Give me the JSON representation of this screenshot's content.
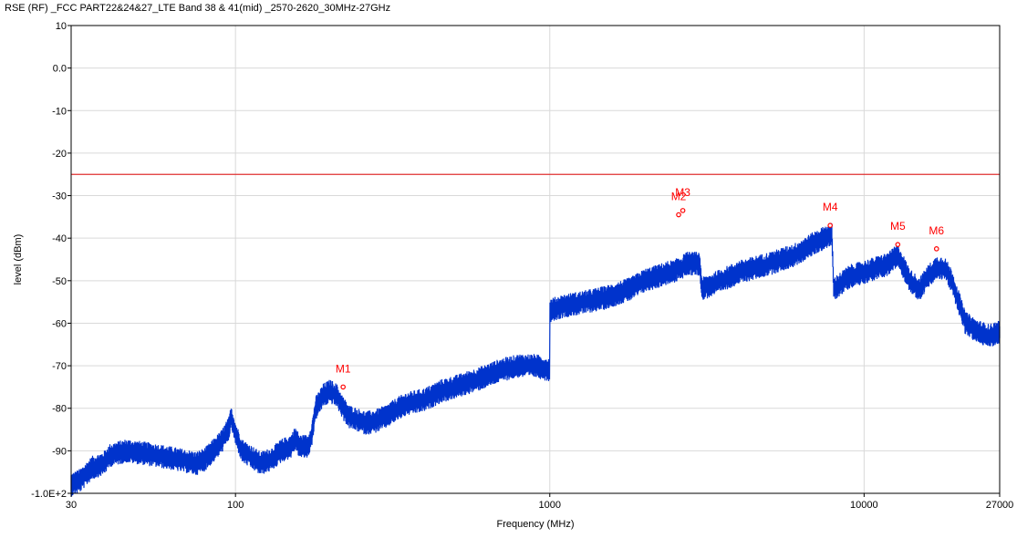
{
  "title": "RSE (RF)  _FCC PART22&24&27_LTE Band 38 & 41(mid) _2570-2620_30MHz-27GHz",
  "chart_data": {
    "type": "line",
    "title": "RSE (RF)  _FCC PART22&24&27_LTE Band 38 & 41(mid) _2570-2620_30MHz-27GHz",
    "xlabel": "Frequency (MHz)",
    "ylabel": "level (dBm)",
    "x_scale": "log",
    "xlim": [
      30,
      27000
    ],
    "ylim": [
      -100,
      10
    ],
    "x_ticks": [
      30,
      100,
      1000,
      10000,
      27000
    ],
    "x_tick_labels": [
      "30",
      "100",
      "1000",
      "10000",
      "27000"
    ],
    "y_ticks": [
      10,
      0,
      -10,
      -20,
      -30,
      -40,
      -50,
      -60,
      -70,
      -80,
      -90,
      -100
    ],
    "y_tick_labels": [
      "10",
      "0.0",
      "-10",
      "-20",
      "-30",
      "-40",
      "-50",
      "-60",
      "-70",
      "-80",
      "-90",
      "-1.0E+2"
    ],
    "grid": true,
    "limit_line": {
      "value": -25,
      "color": "#e03030"
    },
    "series": [
      {
        "color": "#0033cc",
        "x": [
          30,
          32,
          35,
          38,
          40,
          45,
          50,
          55,
          60,
          65,
          70,
          75,
          80,
          85,
          90,
          95,
          97,
          100,
          105,
          110,
          115,
          120,
          130,
          140,
          150,
          155,
          160,
          170,
          175,
          180,
          190,
          200,
          210,
          220,
          230,
          250,
          260,
          280,
          300,
          330,
          350,
          400,
          450,
          500,
          600,
          700,
          800,
          900,
          999,
          1000,
          1100,
          1300,
          1500,
          1800,
          2000,
          2200,
          2400,
          2500,
          2560,
          2600,
          2640,
          2700,
          2800,
          3000,
          3050,
          3500,
          4000,
          5000,
          6000,
          7000,
          7900,
          8000,
          9000,
          10000,
          11000,
          12000,
          12800,
          14000,
          15000,
          16000,
          16500,
          17000,
          18000,
          19000,
          20000,
          21000,
          23000,
          25000,
          27000
        ],
        "y": [
          -98,
          -97,
          -94,
          -93,
          -91,
          -90,
          -90.5,
          -91,
          -91.5,
          -92,
          -92.5,
          -93,
          -92,
          -90,
          -88,
          -85,
          -82,
          -86,
          -90,
          -91,
          -92,
          -93,
          -92,
          -90,
          -89,
          -87,
          -89,
          -89,
          -86,
          -80,
          -77,
          -76,
          -77,
          -80,
          -82,
          -83,
          -83.5,
          -83,
          -82,
          -80,
          -79,
          -78,
          -76,
          -75,
          -73,
          -71,
          -70,
          -70,
          -71,
          -57,
          -56,
          -55,
          -54,
          -52,
          -50,
          -49,
          -48,
          -48,
          -47,
          -47,
          -47,
          -46,
          -46,
          -46,
          -52,
          -50,
          -48,
          -46,
          -44,
          -41,
          -39,
          -52,
          -49,
          -48,
          -47,
          -46,
          -44,
          -50,
          -52,
          -49,
          -48,
          -47,
          -47,
          -50,
          -55,
          -60,
          -62,
          -63,
          -62
        ]
      }
    ],
    "markers": [
      {
        "label": "M1",
        "x": 220,
        "y": -75
      },
      {
        "label": "M2",
        "x": 2570,
        "y": -34.5
      },
      {
        "label": "M3",
        "x": 2650,
        "y": -33.5
      },
      {
        "label": "M4",
        "x": 7800,
        "y": -37
      },
      {
        "label": "M5",
        "x": 12800,
        "y": -41.5
      },
      {
        "label": "M6",
        "x": 17000,
        "y": -42.5
      }
    ],
    "marker_color": "#ff0000"
  }
}
